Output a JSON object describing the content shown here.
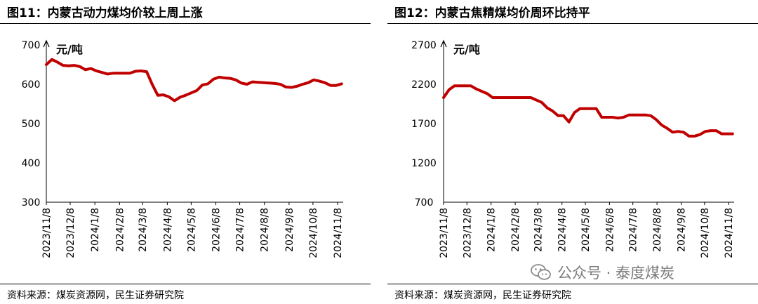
{
  "figures": [
    {
      "title": "图11：内蒙古动力煤均价较上周上涨",
      "source": "资料来源：煤炭资源网，民生证券研究院"
    },
    {
      "title": "图12：内蒙古焦精煤均价周环比持平",
      "source": "资料来源：煤炭资源网，民生证券研究院"
    }
  ],
  "watermark": {
    "text": "公众号 · 泰度煤炭",
    "icon": "wechat-icon"
  },
  "chart_data": [
    {
      "type": "line",
      "title": "图11：内蒙古动力煤均价较上周上涨",
      "unit_label": "元/吨",
      "ylim": [
        300,
        700
      ],
      "yticks": [
        300,
        400,
        500,
        600,
        700
      ],
      "xlim": [
        "2023-11-08",
        "2024-11-15"
      ],
      "xticks": [
        "2023/11/8",
        "2023/12/8",
        "2024/1/8",
        "2024/2/8",
        "2024/3/8",
        "2024/4/8",
        "2024/5/8",
        "2024/6/8",
        "2024/7/8",
        "2024/8/8",
        "2024/9/8",
        "2024/10/8",
        "2024/11/8"
      ],
      "grid": false,
      "color": "#c00000",
      "series": [
        {
          "x": [
            "2023-11-08",
            "2023-11-15",
            "2023-11-22",
            "2023-11-29",
            "2023-12-06",
            "2023-12-13",
            "2023-12-20",
            "2023-12-27",
            "2024-01-03",
            "2024-01-10",
            "2024-01-17",
            "2024-01-24",
            "2024-01-31",
            "2024-02-07",
            "2024-02-21",
            "2024-02-28",
            "2024-03-06",
            "2024-03-13",
            "2024-03-20",
            "2024-03-27",
            "2024-04-03",
            "2024-04-10",
            "2024-04-17",
            "2024-04-24",
            "2024-05-01",
            "2024-05-08",
            "2024-05-15",
            "2024-05-22",
            "2024-05-29",
            "2024-06-05",
            "2024-06-12",
            "2024-06-19",
            "2024-06-26",
            "2024-07-03",
            "2024-07-10",
            "2024-07-17",
            "2024-07-24",
            "2024-07-31",
            "2024-08-07",
            "2024-08-14",
            "2024-08-21",
            "2024-08-28",
            "2024-09-04",
            "2024-09-11",
            "2024-09-18",
            "2024-09-25",
            "2024-10-02",
            "2024-10-09",
            "2024-10-16",
            "2024-10-23",
            "2024-10-30",
            "2024-11-06",
            "2024-11-13"
          ],
          "y": [
            650,
            663,
            656,
            648,
            647,
            648,
            645,
            637,
            640,
            634,
            630,
            626,
            628,
            628,
            628,
            633,
            634,
            632,
            600,
            572,
            573,
            568,
            558,
            567,
            572,
            578,
            584,
            598,
            601,
            613,
            618,
            616,
            615,
            611,
            603,
            600,
            606,
            605,
            604,
            603,
            602,
            600,
            593,
            592,
            595,
            600,
            604,
            611,
            608,
            604,
            597,
            597,
            601
          ]
        }
      ]
    },
    {
      "type": "line",
      "title": "图12：内蒙古焦精煤均价周环比持平",
      "unit_label": "元/吨",
      "ylim": [
        700,
        2700
      ],
      "yticks": [
        700,
        1200,
        1700,
        2200,
        2700
      ],
      "xlim": [
        "2023-11-08",
        "2024-11-15"
      ],
      "xticks": [
        "2023/11/8",
        "2023/12/8",
        "2024/1/8",
        "2024/2/8",
        "2024/3/8",
        "2024/4/8",
        "2024/5/8",
        "2024/6/8",
        "2024/7/8",
        "2024/8/8",
        "2024/9/8",
        "2024/10/8",
        "2024/11/8"
      ],
      "grid": false,
      "color": "#c00000",
      "series": [
        {
          "x": [
            "2023-11-08",
            "2023-11-15",
            "2023-11-22",
            "2023-11-29",
            "2023-12-06",
            "2023-12-13",
            "2023-12-20",
            "2023-12-27",
            "2024-01-03",
            "2024-01-10",
            "2024-01-17",
            "2024-01-24",
            "2024-01-31",
            "2024-02-07",
            "2024-02-21",
            "2024-02-28",
            "2024-03-06",
            "2024-03-13",
            "2024-03-20",
            "2024-03-27",
            "2024-04-03",
            "2024-04-10",
            "2024-04-17",
            "2024-04-24",
            "2024-05-01",
            "2024-05-08",
            "2024-05-15",
            "2024-05-22",
            "2024-05-29",
            "2024-06-05",
            "2024-06-12",
            "2024-06-19",
            "2024-06-26",
            "2024-07-03",
            "2024-07-10",
            "2024-07-17",
            "2024-07-24",
            "2024-07-31",
            "2024-08-07",
            "2024-08-14",
            "2024-08-21",
            "2024-08-28",
            "2024-09-04",
            "2024-09-11",
            "2024-09-18",
            "2024-09-25",
            "2024-10-02",
            "2024-10-09",
            "2024-10-16",
            "2024-10-23",
            "2024-10-30",
            "2024-11-06",
            "2024-11-13"
          ],
          "y": [
            2030,
            2130,
            2180,
            2180,
            2180,
            2180,
            2140,
            2110,
            2080,
            2030,
            2030,
            2030,
            2030,
            2030,
            2030,
            2030,
            2000,
            1970,
            1900,
            1860,
            1800,
            1800,
            1720,
            1840,
            1890,
            1890,
            1890,
            1890,
            1780,
            1780,
            1780,
            1770,
            1780,
            1810,
            1810,
            1810,
            1810,
            1800,
            1750,
            1680,
            1640,
            1590,
            1600,
            1590,
            1540,
            1540,
            1560,
            1600,
            1610,
            1610,
            1570,
            1570,
            1570
          ]
        }
      ]
    }
  ]
}
